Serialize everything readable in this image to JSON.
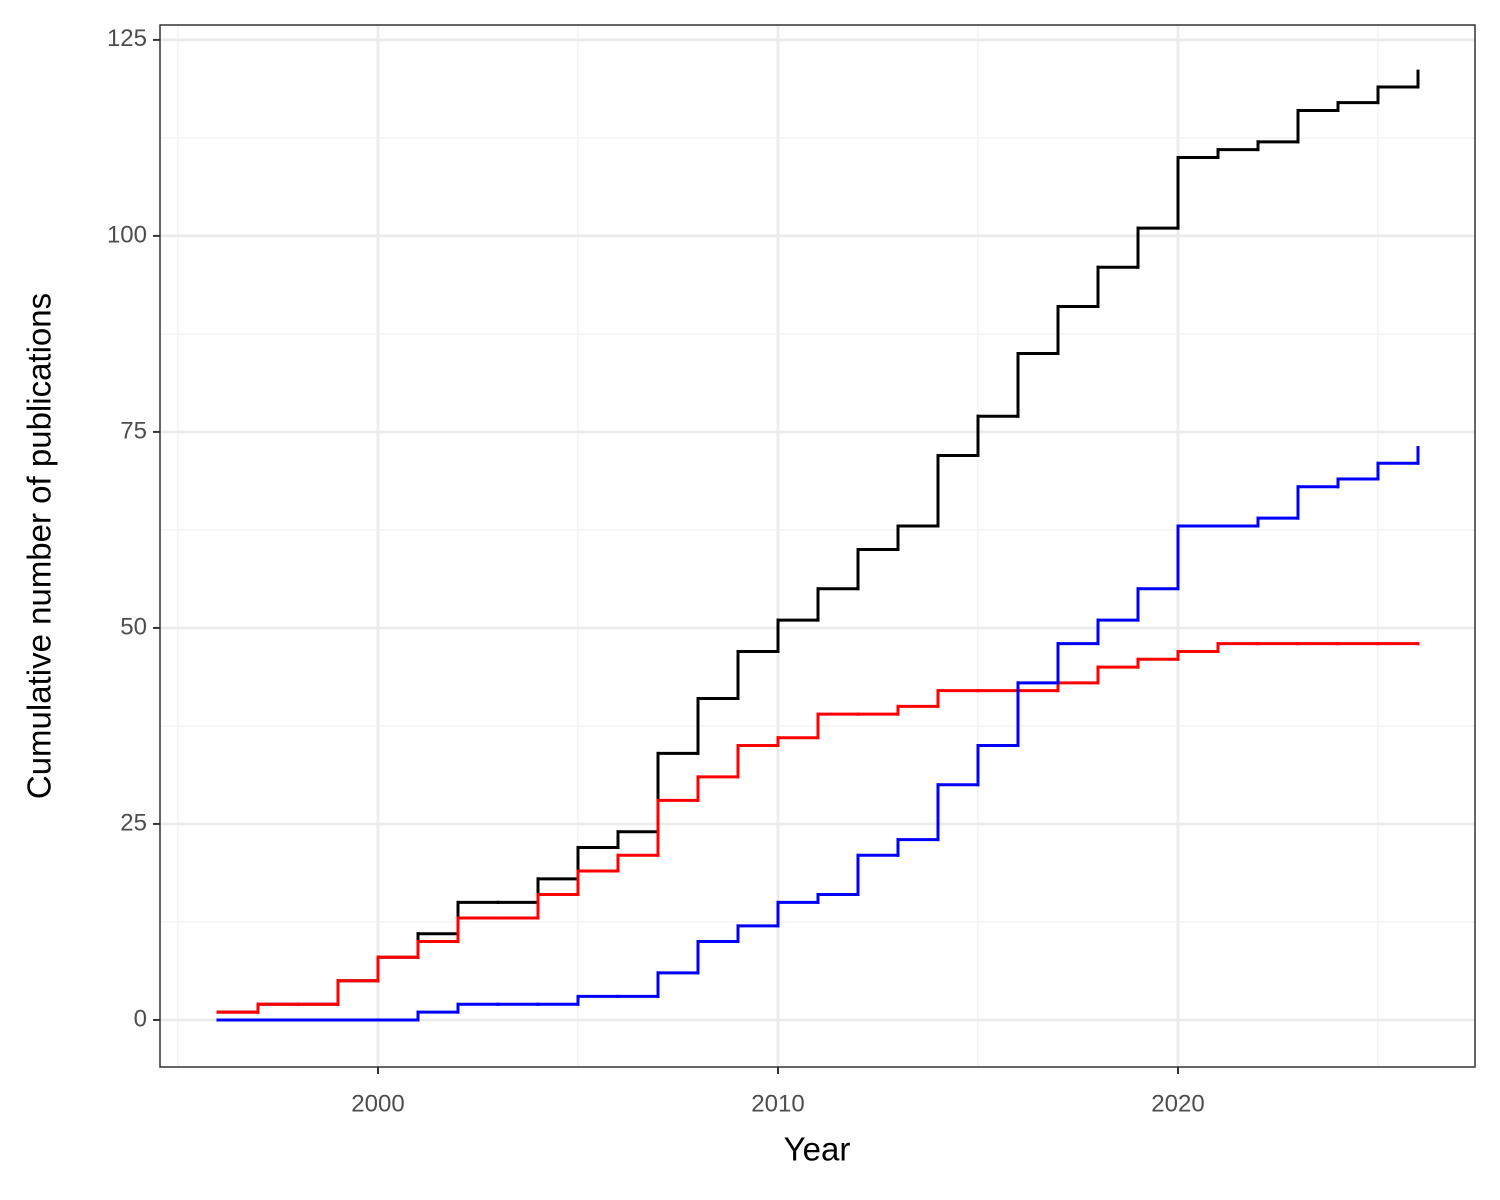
{
  "chart_data": {
    "type": "step",
    "x_label": "Year",
    "y_label": "Cumulative number of publications",
    "x": [
      1996,
      1997,
      1998,
      1999,
      2000,
      2001,
      2002,
      2003,
      2004,
      2005,
      2006,
      2007,
      2008,
      2009,
      2010,
      2011,
      2012,
      2013,
      2014,
      2015,
      2016,
      2017,
      2018,
      2019,
      2020,
      2021,
      2022,
      2023,
      2024,
      2025,
      2026
    ],
    "series": [
      {
        "color": "#000000",
        "values": [
          1,
          2,
          2,
          5,
          8,
          11,
          15,
          15,
          18,
          22,
          24,
          34,
          41,
          47,
          51,
          55,
          60,
          63,
          72,
          77,
          85,
          91,
          96,
          101,
          110,
          111,
          112,
          116,
          117,
          119,
          121
        ]
      },
      {
        "color": "#ff0000",
        "values": [
          1,
          2,
          2,
          5,
          8,
          10,
          13,
          13,
          16,
          19,
          21,
          28,
          31,
          35,
          36,
          39,
          39,
          40,
          42,
          42,
          42,
          43,
          45,
          46,
          47,
          48,
          48,
          48,
          48,
          48,
          48
        ]
      },
      {
        "color": "#0000ff",
        "values": [
          0,
          0,
          0,
          0,
          0,
          1,
          2,
          2,
          2,
          3,
          3,
          6,
          10,
          12,
          15,
          16,
          21,
          23,
          30,
          35,
          43,
          48,
          51,
          55,
          63,
          63,
          64,
          68,
          69,
          71,
          73
        ]
      }
    ],
    "xlim": [
      1994.55,
      2027.425
    ],
    "xticks": [
      2000,
      2010,
      2020
    ],
    "ylim": [
      -6.0,
      126.9
    ],
    "yticks": [
      0,
      25,
      50,
      75,
      100,
      125
    ],
    "grid": true
  }
}
